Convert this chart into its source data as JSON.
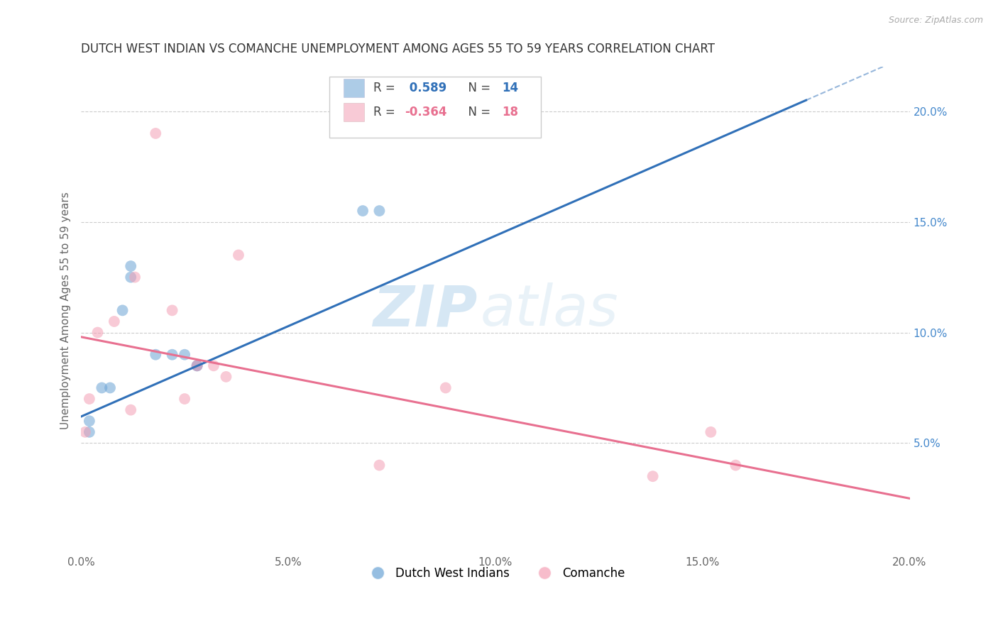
{
  "title": "DUTCH WEST INDIAN VS COMANCHE UNEMPLOYMENT AMONG AGES 55 TO 59 YEARS CORRELATION CHART",
  "source": "Source: ZipAtlas.com",
  "ylabel": "Unemployment Among Ages 55 to 59 years",
  "xlim": [
    0.0,
    0.2
  ],
  "ylim": [
    0.0,
    0.22
  ],
  "xticks": [
    0.0,
    0.05,
    0.1,
    0.15,
    0.2
  ],
  "yticks": [
    0.05,
    0.1,
    0.15,
    0.2
  ],
  "xticklabels": [
    "0.0%",
    "5.0%",
    "10.0%",
    "15.0%",
    "20.0%"
  ],
  "yticklabels": [
    "5.0%",
    "10.0%",
    "15.0%",
    "20.0%"
  ],
  "blue_scatter_x": [
    0.002,
    0.002,
    0.005,
    0.007,
    0.01,
    0.012,
    0.012,
    0.018,
    0.022,
    0.025,
    0.028,
    0.028,
    0.068,
    0.072
  ],
  "blue_scatter_y": [
    0.055,
    0.06,
    0.075,
    0.075,
    0.11,
    0.125,
    0.13,
    0.09,
    0.09,
    0.09,
    0.085,
    0.085,
    0.155,
    0.155
  ],
  "pink_scatter_x": [
    0.001,
    0.002,
    0.004,
    0.008,
    0.012,
    0.013,
    0.018,
    0.022,
    0.025,
    0.028,
    0.032,
    0.035,
    0.038,
    0.072,
    0.088,
    0.138,
    0.152,
    0.158
  ],
  "pink_scatter_y": [
    0.055,
    0.07,
    0.1,
    0.105,
    0.065,
    0.125,
    0.19,
    0.11,
    0.07,
    0.085,
    0.085,
    0.08,
    0.135,
    0.04,
    0.075,
    0.035,
    0.055,
    0.04
  ],
  "blue_line_x0": 0.0,
  "blue_line_y0": 0.062,
  "blue_line_x1": 0.175,
  "blue_line_y1": 0.205,
  "pink_line_x0": 0.0,
  "pink_line_y0": 0.098,
  "pink_line_x1": 0.2,
  "pink_line_y1": 0.025,
  "blue_R": 0.589,
  "blue_N": 14,
  "pink_R": -0.364,
  "pink_N": 18,
  "blue_color": "#6aa3d5",
  "pink_color": "#f4a0b5",
  "blue_line_color": "#3070b8",
  "pink_line_color": "#e87090",
  "legend_labels": [
    "Dutch West Indians",
    "Comanche"
  ],
  "marker_size": 130,
  "watermark_zip": "ZIP",
  "watermark_atlas": "atlas",
  "background_color": "#ffffff"
}
